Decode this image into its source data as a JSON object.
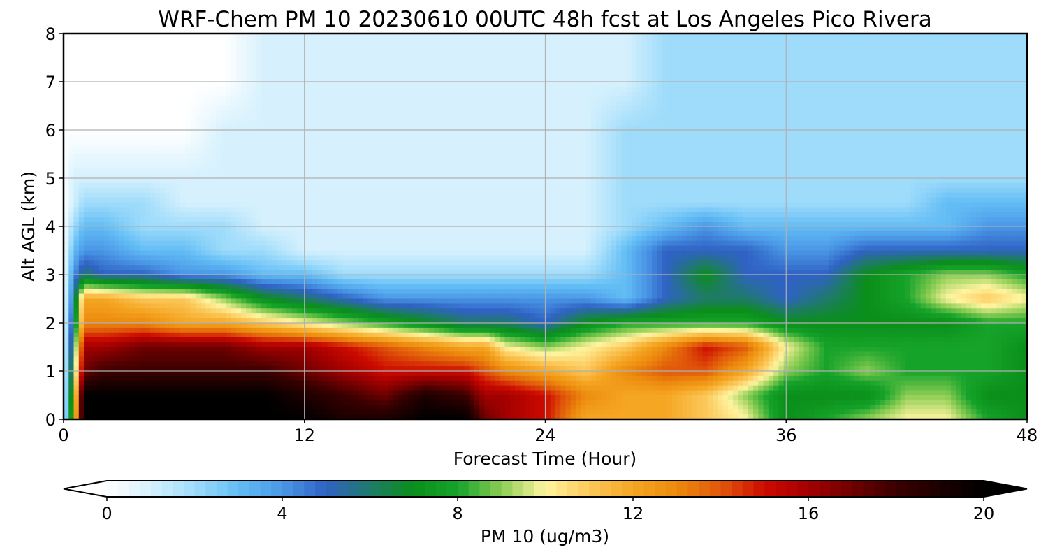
{
  "chart_data": {
    "type": "heatmap",
    "title": "WRF-Chem PM 10  20230610 00UTC 48h fcst at Los Angeles Pico Rivera",
    "xlabel": "Forecast Time (Hour)",
    "ylabel": "Alt AGL (km)",
    "xlim": [
      0,
      48
    ],
    "ylim": [
      0,
      8
    ],
    "x_ticks": [
      "0",
      "12",
      "24",
      "36",
      "48"
    ],
    "y_ticks": [
      "0",
      "1",
      "2",
      "3",
      "4",
      "5",
      "6",
      "7",
      "8"
    ],
    "grid": true,
    "colorbar": {
      "label": "PM 10  (ug/m3)",
      "range": [
        0,
        20
      ],
      "ticks": [
        "0",
        "4",
        "8",
        "12",
        "16",
        "20"
      ],
      "extend": "both",
      "color_stops": [
        {
          "value": 0,
          "color": "#ffffff"
        },
        {
          "value": 1,
          "color": "#d6f1fd"
        },
        {
          "value": 2,
          "color": "#9fdcfb"
        },
        {
          "value": 3,
          "color": "#63bdf5"
        },
        {
          "value": 4,
          "color": "#4a97e6"
        },
        {
          "value": 5,
          "color": "#2f62c4"
        },
        {
          "value": 6,
          "color": "#1f7a6a"
        },
        {
          "value": 7,
          "color": "#0a8f1a"
        },
        {
          "value": 8,
          "color": "#16a32a"
        },
        {
          "value": 9,
          "color": "#8ccd54"
        },
        {
          "value": 10,
          "color": "#fff4a0"
        },
        {
          "value": 11,
          "color": "#fbc85a"
        },
        {
          "value": 12,
          "color": "#f5a623"
        },
        {
          "value": 13,
          "color": "#ec8a0d"
        },
        {
          "value": 14,
          "color": "#e0560a"
        },
        {
          "value": 15,
          "color": "#cc0a00"
        },
        {
          "value": 16,
          "color": "#a30000"
        },
        {
          "value": 17,
          "color": "#6f0000"
        },
        {
          "value": 18,
          "color": "#3a0000"
        },
        {
          "value": 20,
          "color": "#000000"
        }
      ]
    },
    "x_hours": [
      0,
      0.5,
      1,
      2,
      4,
      6,
      8,
      10,
      12,
      14,
      16,
      18,
      20,
      21,
      22,
      24,
      26,
      28,
      30,
      32,
      34,
      36,
      38,
      40,
      42,
      44,
      46,
      48
    ],
    "y_km": [
      0,
      0.5,
      1,
      1.5,
      2,
      2.5,
      3,
      3.5,
      4,
      4.5,
      5,
      6,
      7,
      8
    ],
    "values": [
      [
        0,
        10,
        20,
        20,
        20,
        20,
        20,
        20,
        20,
        19,
        19,
        20,
        20,
        17,
        16,
        15,
        12,
        12,
        12,
        11,
        10,
        7,
        8,
        9,
        10,
        10,
        8,
        7
      ],
      [
        0,
        9,
        20,
        20,
        20,
        20,
        20,
        20,
        19,
        18,
        17,
        19,
        18,
        16,
        16,
        15,
        13,
        12,
        12,
        11,
        9,
        7,
        7,
        7,
        9,
        9,
        7,
        7
      ],
      [
        0,
        8,
        17,
        18,
        18,
        18,
        18,
        18,
        17,
        16,
        15,
        15,
        15,
        14,
        13,
        12,
        11,
        13,
        14,
        14,
        12,
        9,
        8,
        9,
        8,
        8,
        8,
        7
      ],
      [
        0,
        7,
        16,
        16,
        17,
        17,
        17,
        16,
        16,
        15,
        14,
        13,
        12,
        12,
        10,
        9,
        10,
        11,
        13,
        15,
        14,
        10,
        8,
        8,
        8,
        8,
        8,
        7
      ],
      [
        0,
        6,
        13,
        13,
        13,
        12,
        12,
        11,
        10,
        9,
        8,
        7,
        6,
        6,
        6,
        5,
        7,
        8,
        8,
        8,
        8,
        7,
        7,
        7,
        7,
        7,
        8,
        8
      ],
      [
        0,
        5,
        12,
        12,
        11,
        11,
        9,
        7,
        6,
        5,
        4,
        4,
        4,
        4,
        4,
        4,
        4,
        3,
        5,
        6,
        6,
        5,
        6,
        7,
        8,
        10,
        11,
        10
      ],
      [
        0,
        4,
        6,
        5,
        5,
        4,
        4,
        3,
        3,
        2,
        2,
        2,
        2,
        2,
        2,
        2,
        2,
        3,
        5,
        7,
        5,
        5,
        5,
        7,
        8,
        9,
        9,
        8
      ],
      [
        0,
        3,
        4,
        4,
        3,
        3,
        2,
        2,
        1,
        1,
        1,
        1,
        1,
        1,
        1,
        1,
        1,
        3,
        5,
        5,
        5,
        4,
        4,
        5,
        5,
        5,
        5,
        5
      ],
      [
        0,
        2,
        3,
        3,
        2,
        2,
        2,
        1,
        1,
        1,
        1,
        1,
        1,
        1,
        1,
        1,
        1,
        2,
        3,
        4,
        3,
        3,
        3,
        3,
        3,
        3,
        4,
        4
      ],
      [
        0,
        1,
        2,
        2,
        2,
        1,
        1,
        1,
        1,
        1,
        1,
        1,
        1,
        1,
        1,
        1,
        1,
        2,
        2,
        2,
        2,
        2,
        2,
        2,
        2,
        3,
        3,
        3
      ],
      [
        0,
        1,
        1,
        1,
        1,
        1,
        1,
        1,
        1,
        1,
        1,
        1,
        1,
        1,
        1,
        1,
        1,
        2,
        2,
        2,
        2,
        2,
        2,
        2,
        2,
        2,
        2,
        2
      ],
      [
        0,
        0,
        0,
        0,
        0,
        0,
        1,
        1,
        1,
        1,
        1,
        1,
        1,
        1,
        1,
        1,
        1,
        2,
        2,
        2,
        2,
        2,
        2,
        2,
        2,
        2,
        2,
        2
      ],
      [
        0,
        0,
        0,
        0,
        0,
        0,
        0,
        1,
        1,
        1,
        1,
        1,
        1,
        1,
        1,
        1,
        1,
        1,
        2,
        2,
        2,
        2,
        2,
        2,
        2,
        2,
        2,
        2
      ],
      [
        0,
        0,
        0,
        0,
        0,
        0,
        0,
        1,
        1,
        1,
        1,
        1,
        1,
        1,
        1,
        1,
        1,
        1,
        2,
        2,
        2,
        2,
        2,
        2,
        2,
        2,
        2,
        2
      ]
    ]
  }
}
